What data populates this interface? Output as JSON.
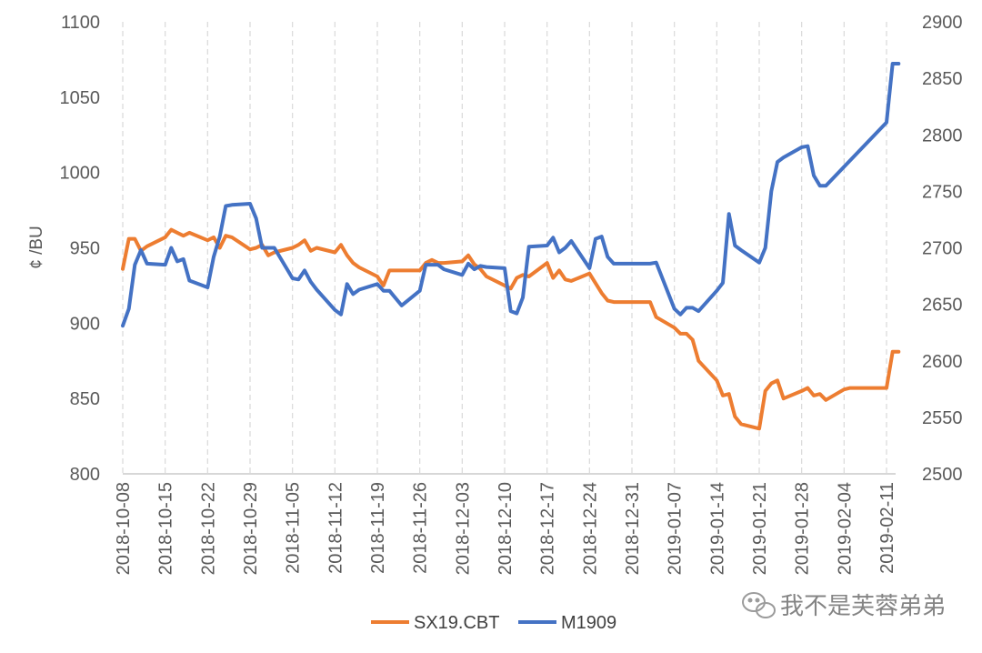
{
  "chart_data": {
    "type": "line",
    "title": "",
    "ylabel": "¢ /BU",
    "y_left_lim": [
      800,
      1100
    ],
    "y_left_ticks": [
      "800",
      "850",
      "900",
      "950",
      "1000",
      "1050",
      "1100"
    ],
    "y_right_lim": [
      2500,
      2900
    ],
    "y_right_ticks": [
      "2500",
      "2550",
      "2600",
      "2650",
      "2700",
      "2750",
      "2800",
      "2850",
      "2900"
    ],
    "x_ticks": [
      "2018-10-08",
      "2018-10-15",
      "2018-10-22",
      "2018-10-29",
      "2018-11-05",
      "2018-11-12",
      "2018-11-19",
      "2018-11-26",
      "2018-12-03",
      "2018-12-10",
      "2018-12-17",
      "2018-12-24",
      "2018-12-31",
      "2019-01-07",
      "2019-01-14",
      "2019-01-21",
      "2019-01-28",
      "2019-02-04",
      "2019-02-11"
    ],
    "x_start": "2018-10-08",
    "grid": "vertical",
    "legend_position": "bottom",
    "series": [
      {
        "name": "SX19.CBT",
        "axis": "left",
        "color": "#ED7D31",
        "x": [
          "2018-10-08",
          "2018-10-09",
          "2018-10-10",
          "2018-10-11",
          "2018-10-12",
          "2018-10-15",
          "2018-10-16",
          "2018-10-17",
          "2018-10-18",
          "2018-10-19",
          "2018-10-22",
          "2018-10-23",
          "2018-10-24",
          "2018-10-25",
          "2018-10-26",
          "2018-10-29",
          "2018-10-30",
          "2018-10-31",
          "2018-11-01",
          "2018-11-02",
          "2018-11-05",
          "2018-11-06",
          "2018-11-07",
          "2018-11-08",
          "2018-11-09",
          "2018-11-12",
          "2018-11-13",
          "2018-11-14",
          "2018-11-15",
          "2018-11-16",
          "2018-11-19",
          "2018-11-20",
          "2018-11-21",
          "2018-11-23",
          "2018-11-26",
          "2018-11-27",
          "2018-11-28",
          "2018-11-29",
          "2018-11-30",
          "2018-12-03",
          "2018-12-04",
          "2018-12-05",
          "2018-12-06",
          "2018-12-07",
          "2018-12-10",
          "2018-12-11",
          "2018-12-12",
          "2018-12-13",
          "2018-12-14",
          "2018-12-17",
          "2018-12-18",
          "2018-12-19",
          "2018-12-20",
          "2018-12-21",
          "2018-12-24",
          "2018-12-26",
          "2018-12-27",
          "2018-12-28",
          "2018-12-31",
          "2019-01-02",
          "2019-01-03",
          "2019-01-04",
          "2019-01-07",
          "2019-01-08",
          "2019-01-09",
          "2019-01-10",
          "2019-01-11",
          "2019-01-14",
          "2019-01-15",
          "2019-01-16",
          "2019-01-17",
          "2019-01-18",
          "2019-01-21",
          "2019-01-22",
          "2019-01-23",
          "2019-01-24",
          "2019-01-25",
          "2019-01-28",
          "2019-01-29",
          "2019-01-30",
          "2019-01-31",
          "2019-02-01",
          "2019-02-04",
          "2019-02-05",
          "2019-02-06",
          "2019-02-07",
          "2019-02-08",
          "2019-02-11",
          "2019-02-12",
          "2019-02-13"
        ],
        "values": [
          936,
          956,
          956,
          948,
          951,
          957,
          962,
          960,
          958,
          960,
          955,
          957,
          950,
          958,
          957,
          949,
          950,
          952,
          945,
          947,
          950,
          952,
          955,
          948,
          950,
          947,
          952,
          945,
          940,
          937,
          931,
          925,
          935,
          935,
          935,
          940,
          942,
          940,
          940,
          941,
          945,
          939,
          936,
          931,
          925,
          923,
          930,
          932,
          931,
          940,
          930,
          935,
          929,
          928,
          933,
          920,
          915,
          914,
          914,
          914,
          914,
          904,
          897,
          893,
          893,
          889,
          875,
          862,
          852,
          853,
          838,
          833,
          830,
          855,
          860,
          862,
          850,
          855,
          857,
          852,
          853,
          849,
          856,
          857,
          857,
          857,
          857,
          857,
          881,
          881
        ]
      },
      {
        "name": "M1909",
        "axis": "right",
        "color": "#4472C4",
        "x": [
          "2018-10-08",
          "2018-10-09",
          "2018-10-10",
          "2018-10-11",
          "2018-10-12",
          "2018-10-15",
          "2018-10-16",
          "2018-10-17",
          "2018-10-18",
          "2018-10-19",
          "2018-10-22",
          "2018-10-23",
          "2018-10-24",
          "2018-10-25",
          "2018-10-26",
          "2018-10-29",
          "2018-10-30",
          "2018-10-31",
          "2018-11-01",
          "2018-11-02",
          "2018-11-05",
          "2018-11-06",
          "2018-11-07",
          "2018-11-08",
          "2018-11-09",
          "2018-11-12",
          "2018-11-13",
          "2018-11-14",
          "2018-11-15",
          "2018-11-16",
          "2018-11-19",
          "2018-11-20",
          "2018-11-21",
          "2018-11-23",
          "2018-11-26",
          "2018-11-27",
          "2018-11-28",
          "2018-11-29",
          "2018-11-30",
          "2018-12-03",
          "2018-12-04",
          "2018-12-05",
          "2018-12-06",
          "2018-12-07",
          "2018-12-10",
          "2018-12-11",
          "2018-12-12",
          "2018-12-13",
          "2018-12-14",
          "2018-12-17",
          "2018-12-18",
          "2018-12-19",
          "2018-12-20",
          "2018-12-21",
          "2018-12-24",
          "2018-12-25",
          "2018-12-26",
          "2018-12-27",
          "2018-12-28",
          "2019-01-02",
          "2019-01-03",
          "2019-01-04",
          "2019-01-07",
          "2019-01-08",
          "2019-01-09",
          "2019-01-10",
          "2019-01-11",
          "2019-01-14",
          "2019-01-15",
          "2019-01-16",
          "2019-01-17",
          "2019-01-18",
          "2019-01-21",
          "2019-01-22",
          "2019-01-23",
          "2019-01-24",
          "2019-01-25",
          "2019-01-28",
          "2019-01-29",
          "2019-01-30",
          "2019-01-31",
          "2019-02-01",
          "2019-02-11",
          "2019-02-12",
          "2019-02-13"
        ],
        "values": [
          2631,
          2646,
          2685,
          2698,
          2686,
          2685,
          2700,
          2688,
          2690,
          2671,
          2665,
          2692,
          2710,
          2737,
          2738,
          2739,
          2726,
          2700,
          2700,
          2700,
          2673,
          2672,
          2680,
          2670,
          2663,
          2645,
          2641,
          2668,
          2659,
          2663,
          2668,
          2662,
          2662,
          2649,
          2662,
          2685,
          2685,
          2685,
          2681,
          2676,
          2686,
          2681,
          2684,
          2683,
          2682,
          2644,
          2642,
          2656,
          2701,
          2702,
          2709,
          2696,
          2700,
          2706,
          2682,
          2708,
          2710,
          2692,
          2686,
          2686,
          2686,
          2687,
          2646,
          2641,
          2647,
          2647,
          2644,
          2662,
          2669,
          2730,
          2702,
          2698,
          2687,
          2700,
          2750,
          2776,
          2780,
          2789,
          2790,
          2764,
          2755,
          2755,
          2811,
          2863,
          2863
        ]
      }
    ]
  },
  "legend": {
    "items": [
      {
        "label": "SX19.CBT",
        "color": "#ED7D31"
      },
      {
        "label": "M1909",
        "color": "#4472C4"
      }
    ]
  },
  "watermark": {
    "text": "我不是芙蓉弟弟",
    "icon": "wechat-icon"
  }
}
